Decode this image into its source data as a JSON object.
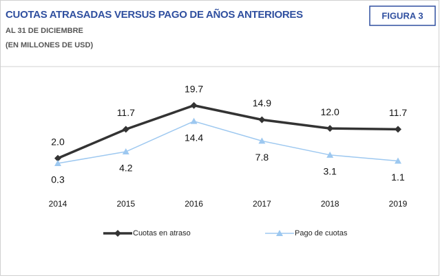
{
  "chart_data": {
    "type": "line",
    "title": "CUOTAS ATRASADAS VERSUS PAGO DE AÑOS ANTERIORES",
    "subtitle": [
      "AL 31 DE DICIEMBRE",
      "(EN MILLONES DE USD)"
    ],
    "badge": "FIGURA 3",
    "categories": [
      "2014",
      "2015",
      "2016",
      "2017",
      "2018",
      "2019"
    ],
    "series": [
      {
        "name": "Cuotas en atraso",
        "color": "#333333",
        "marker": "diamond",
        "values": [
          2.0,
          11.7,
          19.7,
          14.9,
          12.0,
          11.7
        ],
        "value_labels": [
          "2.0",
          "11.7",
          "19.7",
          "14.9",
          "12.0",
          "11.7"
        ]
      },
      {
        "name": "Pago de cuotas",
        "color": "#9dc8f0",
        "marker": "triangle",
        "values": [
          0.3,
          4.2,
          14.4,
          7.8,
          3.1,
          1.1
        ],
        "value_labels": [
          "0.3",
          "4.2",
          "14.4",
          "7.8",
          "3.1",
          "1.1"
        ]
      }
    ]
  }
}
